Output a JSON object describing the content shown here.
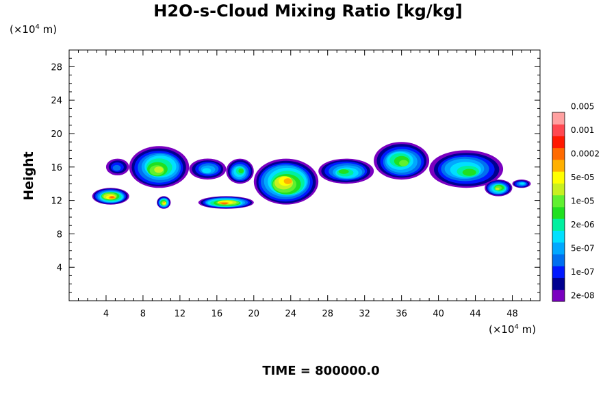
{
  "chart_data": {
    "type": "heatmap",
    "title": "H2O-s-Cloud Mixing Ratio [kg/kg]",
    "ylabel": "Height",
    "x_unit": {
      "prefix": "(×10",
      "exp": "4",
      "suffix": " m)"
    },
    "y_unit": {
      "prefix": "(×10",
      "exp": "4",
      "suffix": " m)"
    },
    "footer": "TIME = 800000.0",
    "xlim": [
      0,
      51
    ],
    "ylim": [
      0,
      30
    ],
    "x_ticks": [
      "4",
      "8",
      "12",
      "16",
      "20",
      "24",
      "28",
      "32",
      "36",
      "40",
      "44",
      "48"
    ],
    "y_ticks": [
      "4",
      "8",
      "12",
      "16",
      "20",
      "24",
      "28"
    ],
    "colorbar": {
      "colors": [
        "#7a00c0",
        "#000090",
        "#0018ff",
        "#0070f0",
        "#00a8ff",
        "#00e0ff",
        "#00f0a0",
        "#20e020",
        "#60f030",
        "#c8f020",
        "#ffff00",
        "#ffb000",
        "#ff6a00",
        "#ff1800",
        "#ff4850",
        "#ffa0a0"
      ],
      "labels": [
        "2e-08",
        "1e-07",
        "5e-07",
        "2e-06",
        "1e-05",
        "5e-05",
        "0.0002",
        "0.001",
        "0.005"
      ]
    },
    "cloud_regions": [
      {
        "x": [
          4,
          6.5
        ],
        "y": [
          15,
          17
        ],
        "max_level": 3
      },
      {
        "x": [
          6.5,
          13
        ],
        "y": [
          13.5,
          18.5
        ],
        "max_level": 9
      },
      {
        "x": [
          13,
          17
        ],
        "y": [
          14.5,
          17
        ],
        "max_level": 5
      },
      {
        "x": [
          17,
          20
        ],
        "y": [
          14,
          17
        ],
        "max_level": 7
      },
      {
        "x": [
          20,
          27
        ],
        "y": [
          11.5,
          17
        ],
        "max_level": 11
      },
      {
        "x": [
          27,
          33
        ],
        "y": [
          14,
          17
        ],
        "max_level": 7
      },
      {
        "x": [
          33,
          39
        ],
        "y": [
          14.5,
          19
        ],
        "max_level": 8
      },
      {
        "x": [
          39,
          47
        ],
        "y": [
          13.5,
          18
        ],
        "max_level": 7
      },
      {
        "x": [
          2.5,
          6.5
        ],
        "y": [
          11.5,
          13.5
        ],
        "max_level": 12
      },
      {
        "x": [
          9.5,
          11
        ],
        "y": [
          11,
          12.5
        ],
        "max_level": 11
      },
      {
        "x": [
          14,
          20
        ],
        "y": [
          11,
          12.5
        ],
        "max_level": 12
      },
      {
        "x": [
          45,
          48
        ],
        "y": [
          12.5,
          14.5
        ],
        "max_level": 9
      },
      {
        "x": [
          48,
          50
        ],
        "y": [
          13.5,
          14.5
        ],
        "max_level": 5
      }
    ]
  }
}
